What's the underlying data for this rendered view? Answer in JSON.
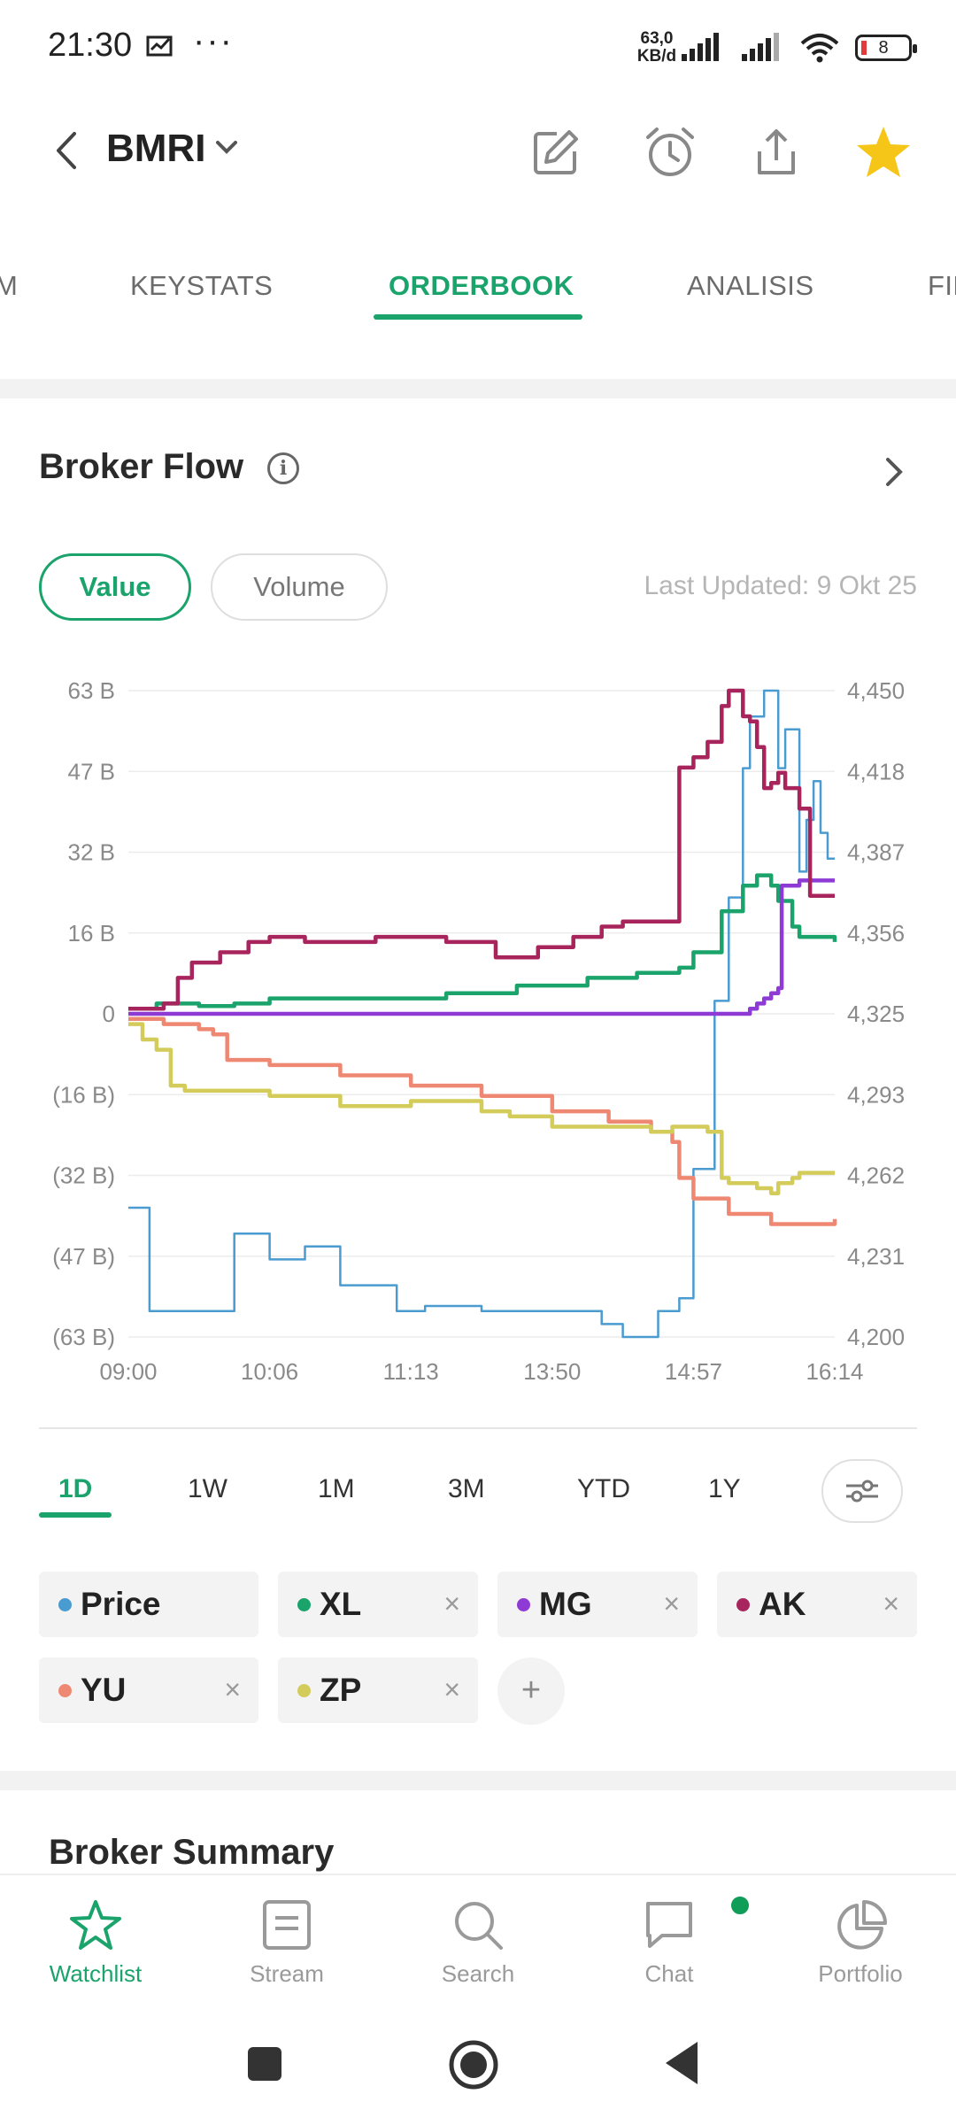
{
  "status_bar": {
    "time": "21:30",
    "speed_value": "63,0",
    "speed_unit": "KB/d",
    "battery": "8"
  },
  "header": {
    "ticker": "BMRI",
    "icons": [
      "edit-icon",
      "alarm-icon",
      "share-icon",
      "star-icon"
    ]
  },
  "tabs": [
    {
      "label": "M"
    },
    {
      "label": "KEYSTATS"
    },
    {
      "label": "ORDERBOOK"
    },
    {
      "label": "ANALISIS"
    },
    {
      "label": "FIN"
    }
  ],
  "broker_flow": {
    "title": "Broker Flow",
    "info": "i",
    "toggle_value": "Value",
    "toggle_volume": "Volume",
    "last_updated": "Last Updated: 9 Okt 25"
  },
  "chart_data": {
    "type": "line",
    "left_axis_ticks": [
      "63 B",
      "47 B",
      "32 B",
      "16 B",
      "0",
      "(16 B)",
      "(32 B)",
      "(47 B)",
      "(63 B)"
    ],
    "left_ylim": [
      -63,
      63
    ],
    "right_axis_ticks": [
      "4,450",
      "4,418",
      "4,387",
      "4,356",
      "4,325",
      "4,293",
      "4,262",
      "4,231",
      "4,200"
    ],
    "right_ylim": [
      4200,
      4450
    ],
    "x_ticks": [
      "09:00",
      "10:06",
      "11:13",
      "13:50",
      "14:57",
      "16:14"
    ],
    "grid": true,
    "series": [
      {
        "name": "Price",
        "color": "#4a9bcf",
        "axis": "right",
        "values": [
          [
            0,
            4250
          ],
          [
            3,
            4210
          ],
          [
            6,
            4210
          ],
          [
            10,
            4210
          ],
          [
            15,
            4240
          ],
          [
            20,
            4230
          ],
          [
            25,
            4235
          ],
          [
            30,
            4220
          ],
          [
            38,
            4210
          ],
          [
            42,
            4212
          ],
          [
            50,
            4210
          ],
          [
            58,
            4210
          ],
          [
            62,
            4210
          ],
          [
            67,
            4205
          ],
          [
            70,
            4200
          ],
          [
            75,
            4210
          ],
          [
            78,
            4215
          ],
          [
            80,
            4265
          ],
          [
            83,
            4330
          ],
          [
            85,
            4370
          ],
          [
            87,
            4420
          ],
          [
            88,
            4440
          ],
          [
            90,
            4450
          ],
          [
            92,
            4420
          ],
          [
            93,
            4435
          ],
          [
            95,
            4380
          ],
          [
            96,
            4400
          ],
          [
            97,
            4415
          ],
          [
            98,
            4395
          ],
          [
            99,
            4385
          ],
          [
            100,
            4385
          ]
        ]
      },
      {
        "name": "XL",
        "color": "#1aa36b",
        "axis": "left",
        "values": [
          [
            0,
            1
          ],
          [
            4,
            2
          ],
          [
            10,
            1.5
          ],
          [
            15,
            2
          ],
          [
            20,
            3
          ],
          [
            35,
            3
          ],
          [
            45,
            4
          ],
          [
            55,
            5.5
          ],
          [
            65,
            7
          ],
          [
            72,
            8
          ],
          [
            78,
            9
          ],
          [
            80,
            12
          ],
          [
            84,
            20
          ],
          [
            87,
            25
          ],
          [
            89,
            27
          ],
          [
            91,
            25
          ],
          [
            92,
            22
          ],
          [
            94,
            17
          ],
          [
            95,
            15
          ],
          [
            100,
            14
          ]
        ]
      },
      {
        "name": "MG",
        "color": "#8e3bd6",
        "axis": "left",
        "values": [
          [
            0,
            0
          ],
          [
            40,
            0
          ],
          [
            70,
            0
          ],
          [
            80,
            0
          ],
          [
            87,
            0
          ],
          [
            88,
            1
          ],
          [
            89,
            2
          ],
          [
            90,
            3
          ],
          [
            91,
            4
          ],
          [
            92,
            5
          ],
          [
            92.5,
            25
          ],
          [
            95,
            26
          ],
          [
            100,
            26
          ]
        ]
      },
      {
        "name": "AK",
        "color": "#a8245c",
        "axis": "left",
        "values": [
          [
            0,
            1
          ],
          [
            5,
            2
          ],
          [
            7,
            7
          ],
          [
            9,
            10
          ],
          [
            13,
            12
          ],
          [
            17,
            14
          ],
          [
            20,
            15
          ],
          [
            25,
            14
          ],
          [
            35,
            15
          ],
          [
            45,
            14
          ],
          [
            52,
            11
          ],
          [
            58,
            13
          ],
          [
            63,
            15
          ],
          [
            67,
            17
          ],
          [
            70,
            18
          ],
          [
            77,
            18
          ],
          [
            78,
            48
          ],
          [
            80,
            50
          ],
          [
            82,
            53
          ],
          [
            84,
            60
          ],
          [
            85,
            63
          ],
          [
            87,
            58
          ],
          [
            88,
            57
          ],
          [
            89,
            52
          ],
          [
            90,
            44
          ],
          [
            91,
            45
          ],
          [
            92,
            47
          ],
          [
            93,
            44
          ],
          [
            95,
            40
          ],
          [
            96,
            40
          ],
          [
            96.5,
            23
          ],
          [
            100,
            23
          ]
        ]
      },
      {
        "name": "YU",
        "color": "#ef8872",
        "axis": "left",
        "values": [
          [
            0,
            -1
          ],
          [
            5,
            -2
          ],
          [
            10,
            -3
          ],
          [
            12,
            -4
          ],
          [
            14,
            -9
          ],
          [
            20,
            -10
          ],
          [
            30,
            -12
          ],
          [
            40,
            -14
          ],
          [
            50,
            -16
          ],
          [
            60,
            -19
          ],
          [
            68,
            -21
          ],
          [
            74,
            -23
          ],
          [
            77,
            -25
          ],
          [
            78,
            -32
          ],
          [
            80,
            -36
          ],
          [
            85,
            -39
          ],
          [
            88,
            -39
          ],
          [
            91,
            -41
          ],
          [
            94,
            -41
          ],
          [
            100,
            -40
          ]
        ]
      },
      {
        "name": "ZP",
        "color": "#d4cc5a",
        "axis": "left",
        "values": [
          [
            0,
            -2
          ],
          [
            2,
            -5
          ],
          [
            4,
            -7
          ],
          [
            6,
            -14
          ],
          [
            8,
            -15
          ],
          [
            15,
            -15
          ],
          [
            20,
            -16
          ],
          [
            30,
            -18
          ],
          [
            40,
            -17
          ],
          [
            50,
            -19
          ],
          [
            54,
            -20
          ],
          [
            60,
            -22
          ],
          [
            67,
            -22
          ],
          [
            72,
            -22
          ],
          [
            74,
            -23
          ],
          [
            77,
            -22
          ],
          [
            80,
            -22
          ],
          [
            82,
            -23
          ],
          [
            84,
            -32
          ],
          [
            85,
            -33
          ],
          [
            87,
            -33
          ],
          [
            89,
            -34
          ],
          [
            91,
            -35
          ],
          [
            92,
            -33
          ],
          [
            94,
            -32
          ],
          [
            95,
            -31
          ],
          [
            100,
            -31
          ]
        ]
      }
    ]
  },
  "periods": [
    "1D",
    "1W",
    "1M",
    "3M",
    "YTD",
    "1Y"
  ],
  "legend": [
    {
      "label": "Price",
      "color": "#4a9bcf",
      "removable": false
    },
    {
      "label": "XL",
      "color": "#1aa36b",
      "removable": true
    },
    {
      "label": "MG",
      "color": "#8e3bd6",
      "removable": true
    },
    {
      "label": "AK",
      "color": "#a8245c",
      "removable": true
    },
    {
      "label": "YU",
      "color": "#ef8872",
      "removable": true
    },
    {
      "label": "ZP",
      "color": "#d4cc5a",
      "removable": true
    }
  ],
  "legend_close": "×",
  "legend_add": "+",
  "broker_summary": {
    "title": "Broker Summary"
  },
  "bottom_nav": [
    {
      "label": "Watchlist",
      "icon": "star-outline-icon"
    },
    {
      "label": "Stream",
      "icon": "stream-icon"
    },
    {
      "label": "Search",
      "icon": "search-icon"
    },
    {
      "label": "Chat",
      "icon": "chat-icon"
    },
    {
      "label": "Portfolio",
      "icon": "pie-chart-icon"
    }
  ],
  "colors": {
    "accent": "#1aa36b",
    "star": "#f5c518"
  }
}
